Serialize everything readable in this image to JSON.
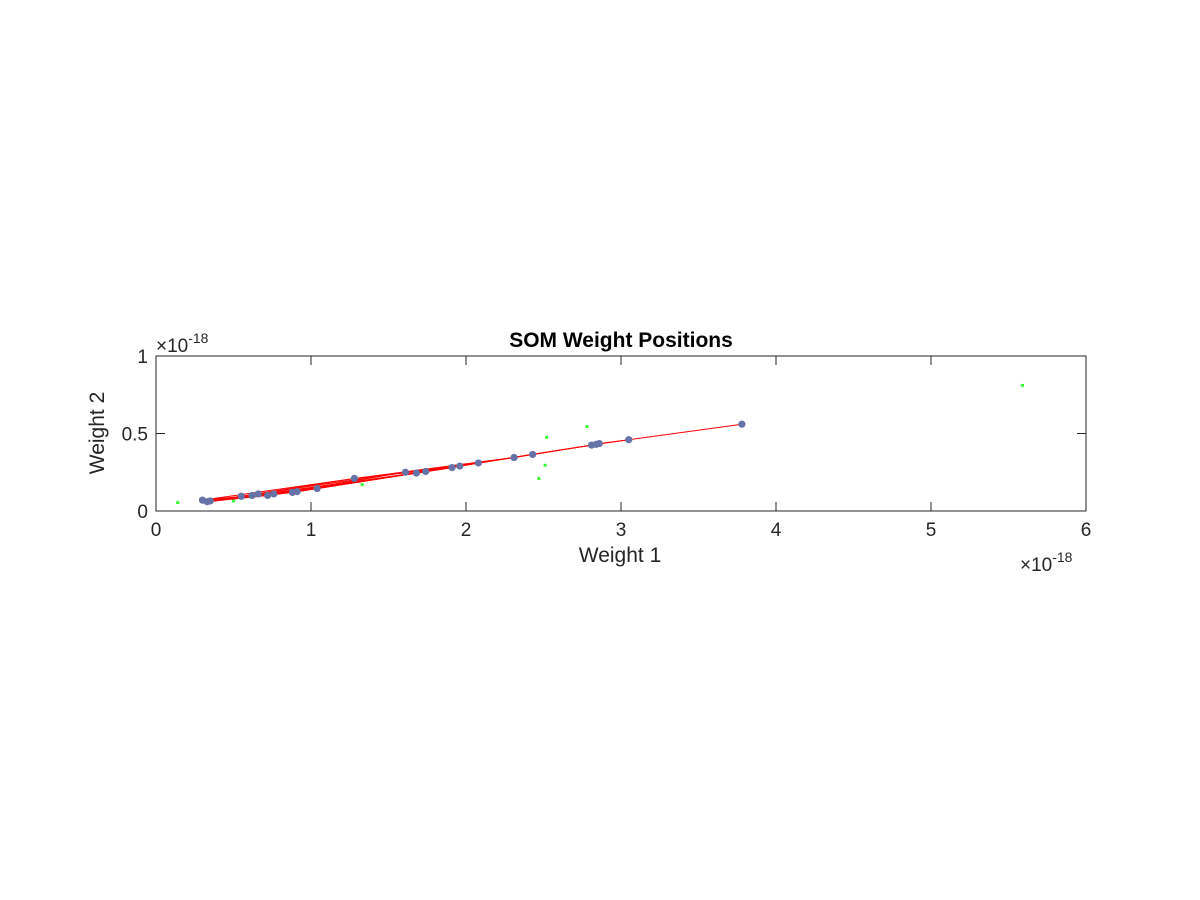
{
  "chart_data": {
    "type": "scatter",
    "title": "SOM Weight Positions",
    "xlabel": "Weight 1",
    "ylabel": "Weight 2",
    "xlim": [
      0,
      6
    ],
    "ylim": [
      0,
      1
    ],
    "x_ticks": [
      0,
      1,
      2,
      3,
      4,
      5,
      6
    ],
    "x_tick_labels": [
      "0",
      "1",
      "2",
      "3",
      "4",
      "5",
      "6"
    ],
    "y_ticks": [
      0,
      0.5,
      1
    ],
    "y_tick_labels": [
      "0",
      "0.5",
      "1"
    ],
    "x_exponent_label": "×10",
    "x_exponent": "-18",
    "y_exponent_label": "×10",
    "y_exponent": "-18",
    "grid": false,
    "legend": "none",
    "series": [
      {
        "role": "input samples",
        "marker": "dot",
        "color": "#33ff33",
        "points": [
          [
            0.14,
            0.055
          ],
          [
            0.5,
            0.065
          ],
          [
            1.33,
            0.17
          ],
          [
            2.47,
            0.21
          ],
          [
            2.51,
            0.295
          ],
          [
            2.52,
            0.475
          ],
          [
            2.78,
            0.545
          ],
          [
            5.59,
            0.81
          ]
        ]
      },
      {
        "role": "neuron weights",
        "marker": "circle",
        "color": "#6673a6",
        "points": [
          [
            0.3,
            0.07
          ],
          [
            0.33,
            0.06
          ],
          [
            0.35,
            0.065
          ],
          [
            0.55,
            0.095
          ],
          [
            0.62,
            0.1
          ],
          [
            0.66,
            0.11
          ],
          [
            0.72,
            0.1
          ],
          [
            0.76,
            0.11
          ],
          [
            0.88,
            0.12
          ],
          [
            0.91,
            0.125
          ],
          [
            1.04,
            0.145
          ],
          [
            1.28,
            0.21
          ],
          [
            1.61,
            0.25
          ],
          [
            1.68,
            0.245
          ],
          [
            1.74,
            0.255
          ],
          [
            1.91,
            0.28
          ],
          [
            1.96,
            0.29
          ],
          [
            2.08,
            0.31
          ],
          [
            2.31,
            0.345
          ],
          [
            2.43,
            0.365
          ],
          [
            2.81,
            0.425
          ],
          [
            2.84,
            0.43
          ],
          [
            2.86,
            0.435
          ],
          [
            3.05,
            0.46
          ],
          [
            3.78,
            0.56
          ]
        ]
      }
    ],
    "line_color": "#ff0000",
    "connections": [
      [
        0,
        4
      ],
      [
        0,
        8
      ],
      [
        0,
        11
      ],
      [
        1,
        2
      ],
      [
        1,
        6
      ],
      [
        1,
        10
      ],
      [
        2,
        3
      ],
      [
        2,
        9
      ],
      [
        2,
        12
      ],
      [
        3,
        5
      ],
      [
        3,
        7
      ],
      [
        3,
        11
      ],
      [
        4,
        6
      ],
      [
        4,
        13
      ],
      [
        5,
        8
      ],
      [
        5,
        10
      ],
      [
        6,
        9
      ],
      [
        6,
        15
      ],
      [
        7,
        12
      ],
      [
        7,
        16
      ],
      [
        8,
        14
      ],
      [
        9,
        13
      ],
      [
        10,
        17
      ],
      [
        11,
        15
      ],
      [
        12,
        18
      ],
      [
        13,
        16
      ],
      [
        14,
        19
      ],
      [
        15,
        17
      ],
      [
        16,
        19
      ],
      [
        17,
        20
      ],
      [
        18,
        20
      ],
      [
        19,
        21
      ],
      [
        20,
        22
      ],
      [
        21,
        23
      ],
      [
        22,
        23
      ],
      [
        23,
        24
      ],
      [
        11,
        18
      ],
      [
        14,
        17
      ],
      [
        12,
        16
      ],
      [
        9,
        15
      ]
    ]
  }
}
